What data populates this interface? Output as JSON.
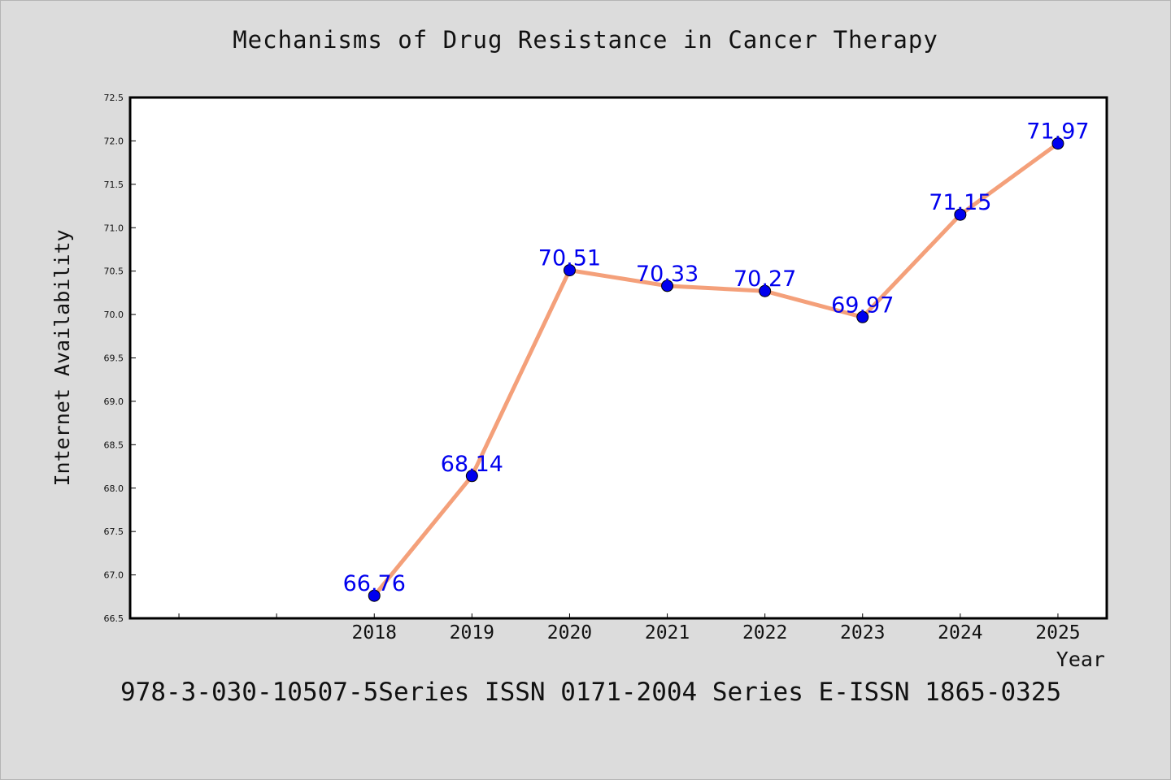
{
  "page": {
    "title": "Mechanisms of Drug Resistance in Cancer Therapy",
    "footer": "978-3-030-10507-5Series ISSN 0171-2004 Series E-ISSN 1865-0325"
  },
  "colors": {
    "background": "#dcdcdc",
    "plot_background": "#ffffff",
    "line": "#f4a07a",
    "marker": "#0000ee",
    "label": "#0000ee"
  },
  "chart_data": {
    "type": "line",
    "title": "Mechanisms of Drug Resistance in Cancer Therapy",
    "xlabel": "Year",
    "ylabel": "Internet Availability",
    "x": [
      2018,
      2019,
      2020,
      2021,
      2022,
      2023,
      2024,
      2025
    ],
    "x_tick_labels": [
      "2018",
      "2019",
      "2020",
      "2021",
      "2022",
      "2023",
      "2024",
      "2025"
    ],
    "xlim": [
      2015.5,
      2025.5
    ],
    "ylim": [
      66.5,
      72.5
    ],
    "y_ticks": [
      "66.5",
      "67.0",
      "67.5",
      "68.0",
      "68.5",
      "69.0",
      "69.5",
      "70.0",
      "70.5",
      "71.0",
      "71.5",
      "72.0",
      "72.5"
    ],
    "series": [
      {
        "values": [
          66.76,
          68.14,
          70.51,
          70.33,
          70.27,
          69.97,
          71.15,
          71.97
        ],
        "data_labels": [
          "66.76",
          "68.14",
          "70.51",
          "70.33",
          "70.27",
          "69.97",
          "71.15",
          "71.97"
        ]
      }
    ],
    "grid": false,
    "legend": "none"
  }
}
